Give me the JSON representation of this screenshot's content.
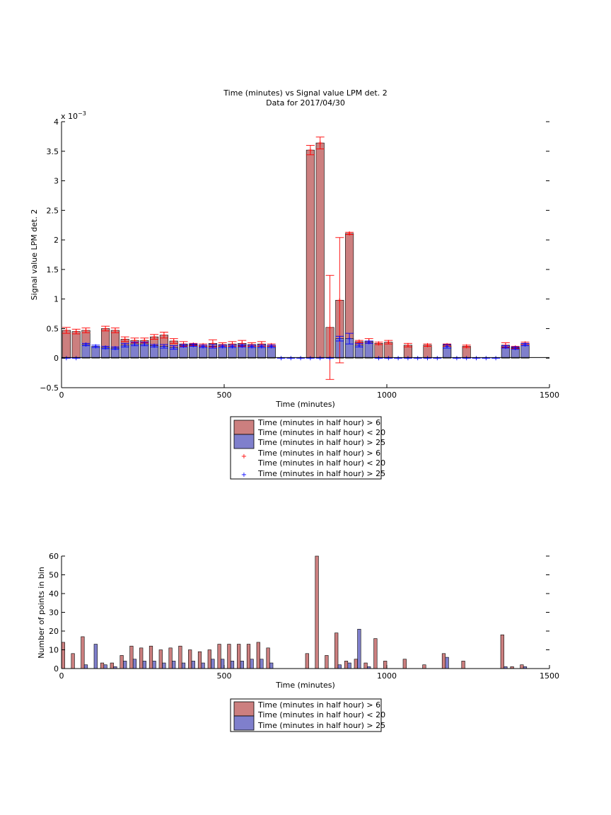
{
  "figure": {
    "title_line1": "Time (minutes) vs Signal value LPM det. 2",
    "title_line2": "Data for 2017/04/30"
  },
  "colors": {
    "series1": "#cc7f7f",
    "series2": "#7f7fcc",
    "errorbar1": "#ff0000",
    "errorbar2": "#0000ff"
  },
  "chart_data": [
    {
      "type": "bar",
      "title": "Time (minutes) vs Signal value LPM det. 2",
      "subtitle": "Data for 2017/04/30",
      "xlabel": "Time (minutes)",
      "ylabel": "Signal value LPM det. 2",
      "scale_label": "x 10",
      "scale_exponent": "−3",
      "xlim": [
        0,
        1500
      ],
      "ylim": [
        -0.5,
        4
      ],
      "xticks": [
        0,
        500,
        1000,
        1500
      ],
      "xtick_labels": [
        "0",
        "500",
        "1000",
        "1500"
      ],
      "yticks": [
        -0.5,
        0,
        0.5,
        1,
        1.5,
        2,
        2.5,
        3,
        3.5,
        4
      ],
      "ytick_labels": [
        "−0.5",
        "0",
        "0.5",
        "1",
        "1.5",
        "2",
        "2.5",
        "3",
        "3.5",
        "4"
      ],
      "grid": false,
      "legend_position": "below",
      "legend": [
        "Time (minutes in half hour) > 6",
        "Time (minutes in half hour) < 20",
        "Time (minutes in half hour) > 25",
        "Time (minutes in half hour) > 6",
        "Time (minutes in half hour) < 20",
        "Time (minutes in half hour) > 25"
      ],
      "series": [
        {
          "x": [
            15,
            45,
            75,
            135,
            165,
            195,
            225,
            255,
            285,
            315,
            345,
            375,
            405,
            435,
            465,
            495,
            525,
            555,
            585,
            615,
            645,
            765,
            795,
            825,
            855,
            885,
            915,
            945,
            975,
            1005,
            1065,
            1125,
            1185,
            1245,
            1365,
            1395,
            1425
          ],
          "values": [
            0.47,
            0.45,
            0.47,
            0.5,
            0.47,
            0.32,
            0.3,
            0.3,
            0.36,
            0.39,
            0.29,
            0.24,
            0.23,
            0.22,
            0.25,
            0.23,
            0.24,
            0.25,
            0.23,
            0.24,
            0.22,
            3.52,
            3.64,
            0.52,
            0.98,
            2.11,
            0.28,
            0.29,
            0.25,
            0.27,
            0.22,
            0.22,
            0.22,
            0.2,
            0.22,
            0.18,
            0.25
          ],
          "error": [
            0.05,
            0.04,
            0.04,
            0.04,
            0.04,
            0.04,
            0.04,
            0.04,
            0.04,
            0.05,
            0.04,
            0.04,
            0.02,
            0.02,
            0.06,
            0.03,
            0.04,
            0.05,
            0.03,
            0.04,
            0.02,
            0.08,
            0.1,
            0.88,
            1.06,
            0.02,
            0.02,
            0.04,
            0.02,
            0.03,
            0.03,
            0.02,
            0.02,
            0.02,
            0.04,
            0.02,
            0.02
          ]
        },
        {
          "x": [
            15,
            45,
            75,
            105,
            135,
            165,
            195,
            225,
            255,
            285,
            315,
            345,
            375,
            405,
            435,
            465,
            495,
            525,
            555,
            585,
            615,
            645,
            675,
            705,
            735,
            765,
            795,
            825,
            855,
            885,
            915,
            945,
            975,
            1005,
            1035,
            1065,
            1095,
            1125,
            1155,
            1185,
            1215,
            1245,
            1275,
            1305,
            1335,
            1365,
            1395,
            1425
          ],
          "values": [
            0,
            0,
            0.23,
            0.2,
            0.18,
            0.17,
            0.22,
            0.24,
            0.24,
            0.21,
            0.2,
            0.18,
            0.21,
            0.22,
            0.2,
            0.2,
            0.2,
            0.2,
            0.21,
            0.2,
            0.2,
            0.2,
            0,
            0,
            0,
            0,
            0,
            0,
            0.33,
            0.33,
            0.22,
            0.27,
            0,
            0,
            0,
            0,
            0,
            0,
            0,
            0.2,
            0,
            0,
            0,
            0,
            0,
            0.19,
            0.17,
            0.23
          ],
          "error": [
            0,
            0,
            0.02,
            0.02,
            0.02,
            0.02,
            0.03,
            0.03,
            0.03,
            0.02,
            0.03,
            0.03,
            0.02,
            0.02,
            0.02,
            0.03,
            0.02,
            0.02,
            0.02,
            0.02,
            0.02,
            0.02,
            0,
            0,
            0,
            0,
            0,
            0,
            0.04,
            0.09,
            0.03,
            0.02,
            0,
            0,
            0,
            0,
            0,
            0,
            0,
            0.03,
            0,
            0,
            0,
            0,
            0,
            0.02,
            0.02,
            0.02
          ]
        }
      ]
    },
    {
      "type": "bar",
      "xlabel": "Time (minutes)",
      "ylabel": "Number of points in bin",
      "xlim": [
        0,
        1500
      ],
      "ylim": [
        0,
        60
      ],
      "xticks": [
        0,
        500,
        1000,
        1500
      ],
      "xtick_labels": [
        "0",
        "500",
        "1000",
        "1500"
      ],
      "yticks": [
        0,
        10,
        20,
        30,
        40,
        50,
        60
      ],
      "ytick_labels": [
        "0",
        "10",
        "20",
        "30",
        "40",
        "50",
        "60"
      ],
      "grid": false,
      "legend_position": "below",
      "legend": [
        "Time (minutes in half hour) > 6",
        "Time (minutes in half hour) < 20",
        "Time (minutes in half hour) > 25"
      ],
      "series": [
        {
          "x": [
            5,
            35,
            65,
            125,
            155,
            185,
            215,
            245,
            275,
            305,
            335,
            365,
            395,
            425,
            455,
            485,
            515,
            545,
            575,
            605,
            635,
            755,
            785,
            815,
            845,
            875,
            905,
            935,
            965,
            995,
            1055,
            1115,
            1175,
            1235,
            1355,
            1385,
            1415
          ],
          "values": [
            14,
            8,
            17,
            3,
            3,
            7,
            12,
            11,
            12,
            10,
            11,
            12,
            10,
            9,
            10,
            13,
            13,
            13,
            13,
            14,
            11,
            8,
            60,
            7,
            19,
            4,
            5,
            3,
            16,
            4,
            5,
            2,
            8,
            4,
            18,
            1,
            2
          ]
        },
        {
          "x": [
            15,
            45,
            75,
            105,
            135,
            165,
            195,
            225,
            255,
            285,
            315,
            345,
            375,
            405,
            435,
            465,
            495,
            525,
            555,
            585,
            615,
            645,
            765,
            795,
            825,
            855,
            885,
            915,
            945,
            975,
            1005,
            1065,
            1125,
            1185,
            1245,
            1365,
            1395,
            1425
          ],
          "values": [
            0,
            0,
            2,
            13,
            2,
            1,
            4,
            5,
            4,
            4,
            3,
            4,
            3,
            4,
            3,
            5,
            5,
            4,
            4,
            5,
            5,
            3,
            0,
            0,
            0,
            2,
            3,
            21,
            1,
            0,
            0,
            0,
            0,
            6,
            0,
            1,
            0,
            1
          ]
        }
      ]
    }
  ]
}
